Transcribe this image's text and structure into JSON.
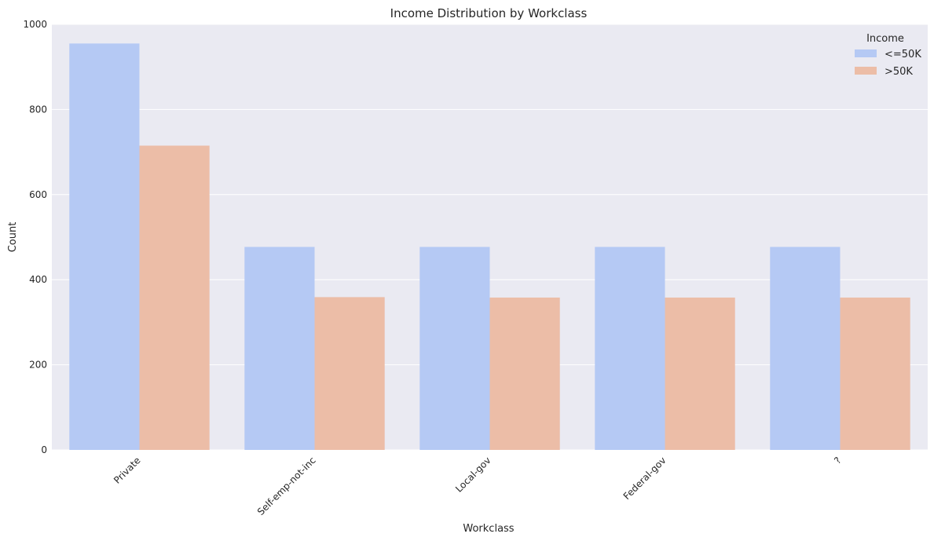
{
  "chart_data": {
    "type": "bar",
    "title": "Income Distribution by Workclass",
    "xlabel": "Workclass",
    "ylabel": "Count",
    "categories": [
      "Private",
      "Self-emp-not-inc",
      "Local-gov",
      "Federal-gov",
      "?"
    ],
    "series": [
      {
        "name": "<=50K",
        "color": "#b5c9f4",
        "values": [
          955,
          477,
          477,
          477,
          477
        ]
      },
      {
        "name": ">50K",
        "color": "#ecbda7",
        "values": [
          715,
          359,
          358,
          358,
          358
        ]
      }
    ],
    "ylim": [
      0,
      1000
    ],
    "yticks": [
      0,
      200,
      400,
      600,
      800,
      1000
    ],
    "grid": true,
    "legend": {
      "title": "Income",
      "placement": "top-right"
    }
  }
}
